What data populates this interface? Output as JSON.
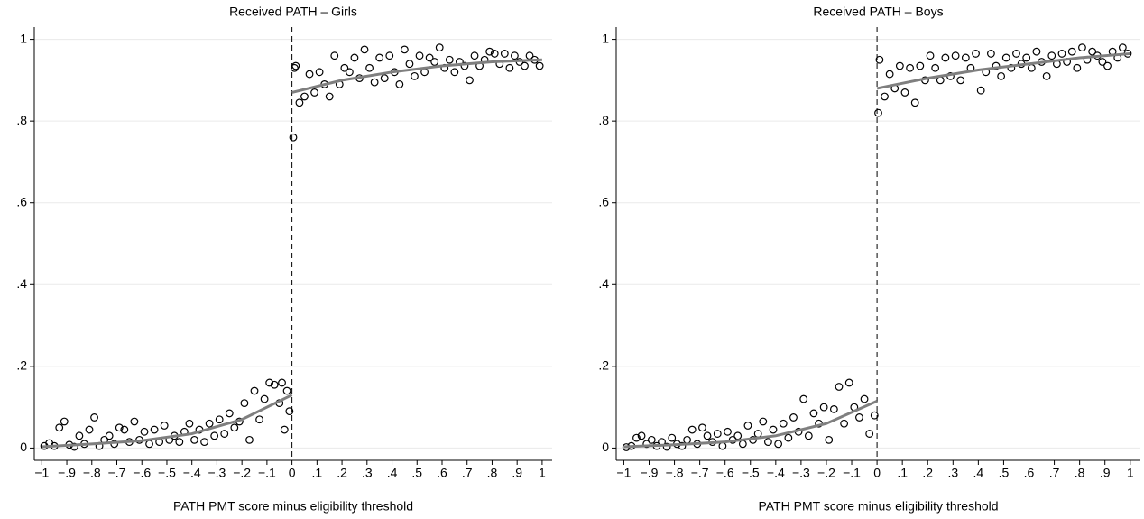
{
  "chart_data": [
    {
      "type": "scatter",
      "title": "Received PATH – Girls",
      "xlabel": "PATH PMT score minus eligibility threshold",
      "xlim": [
        -1.03,
        1.04
      ],
      "ylim": [
        -0.03,
        1.03
      ],
      "grid": true,
      "vline": 0,
      "xticks": [
        {
          "value": -1,
          "label": "−1"
        },
        {
          "value": -0.9,
          "label": "−.9"
        },
        {
          "value": -0.8,
          "label": "−.8"
        },
        {
          "value": -0.7,
          "label": "−.7"
        },
        {
          "value": -0.6,
          "label": "−.6"
        },
        {
          "value": -0.5,
          "label": "−.5"
        },
        {
          "value": -0.4,
          "label": "−.4"
        },
        {
          "value": -0.3,
          "label": "−.3"
        },
        {
          "value": -0.2,
          "label": "−.2"
        },
        {
          "value": -0.1,
          "label": "−.1"
        },
        0,
        {
          "value": 0.1,
          "label": ".1"
        },
        {
          "value": 0.2,
          "label": ".2"
        },
        {
          "value": 0.3,
          "label": ".3"
        },
        {
          "value": 0.4,
          "label": ".4"
        },
        {
          "value": 0.5,
          "label": ".5"
        },
        {
          "value": 0.6,
          "label": ".6"
        },
        {
          "value": 0.7,
          "label": ".7"
        },
        {
          "value": 0.8,
          "label": ".8"
        },
        {
          "value": 0.9,
          "label": ".9"
        },
        1
      ],
      "yticks": [
        0,
        {
          "value": 0.2,
          "label": ".2"
        },
        {
          "value": 0.4,
          "label": ".4"
        },
        {
          "value": 0.6,
          "label": ".6"
        },
        {
          "value": 0.8,
          "label": ".8"
        },
        1
      ],
      "series": [
        {
          "mode": "markers",
          "color": "#000000",
          "x": [
            -0.99,
            -0.97,
            -0.95,
            -0.93,
            -0.91,
            -0.89,
            -0.87,
            -0.85,
            -0.83,
            -0.81,
            -0.79,
            -0.77,
            -0.75,
            -0.73,
            -0.71,
            -0.69,
            -0.67,
            -0.65,
            -0.63,
            -0.61,
            -0.59,
            -0.57,
            -0.55,
            -0.53,
            -0.51,
            -0.49,
            -0.47,
            -0.45,
            -0.43,
            -0.41,
            -0.39,
            -0.37,
            -0.35,
            -0.33,
            -0.31,
            -0.29,
            -0.27,
            -0.25,
            -0.23,
            -0.21,
            -0.19,
            -0.17,
            -0.15,
            -0.13,
            -0.11,
            -0.09,
            -0.07,
            -0.05,
            -0.04,
            -0.03,
            -0.02,
            -0.01,
            0.005,
            0.01,
            0.015,
            0.03,
            0.05,
            0.07,
            0.09,
            0.11,
            0.13,
            0.15,
            0.17,
            0.19,
            0.21,
            0.23,
            0.25,
            0.27,
            0.29,
            0.31,
            0.33,
            0.35,
            0.37,
            0.39,
            0.41,
            0.43,
            0.45,
            0.47,
            0.49,
            0.51,
            0.53,
            0.55,
            0.57,
            0.59,
            0.61,
            0.63,
            0.65,
            0.67,
            0.69,
            0.71,
            0.73,
            0.75,
            0.77,
            0.79,
            0.81,
            0.83,
            0.85,
            0.87,
            0.89,
            0.91,
            0.93,
            0.95,
            0.97,
            0.99
          ],
          "values": [
            0.005,
            0.012,
            0.005,
            0.05,
            0.065,
            0.008,
            0.003,
            0.03,
            0.01,
            0.045,
            0.075,
            0.005,
            0.02,
            0.03,
            0.01,
            0.05,
            0.045,
            0.015,
            0.065,
            0.02,
            0.04,
            0.01,
            0.045,
            0.015,
            0.055,
            0.02,
            0.03,
            0.015,
            0.04,
            0.06,
            0.02,
            0.045,
            0.015,
            0.06,
            0.03,
            0.07,
            0.035,
            0.085,
            0.05,
            0.065,
            0.11,
            0.02,
            0.14,
            0.07,
            0.12,
            0.16,
            0.155,
            0.11,
            0.16,
            0.045,
            0.14,
            0.09,
            0.76,
            0.93,
            0.935,
            0.845,
            0.86,
            0.915,
            0.87,
            0.92,
            0.89,
            0.86,
            0.96,
            0.89,
            0.93,
            0.92,
            0.955,
            0.905,
            0.975,
            0.93,
            0.895,
            0.955,
            0.905,
            0.96,
            0.92,
            0.89,
            0.975,
            0.94,
            0.91,
            0.96,
            0.92,
            0.955,
            0.945,
            0.98,
            0.93,
            0.95,
            0.92,
            0.945,
            0.935,
            0.9,
            0.96,
            0.935,
            0.95,
            0.97,
            0.965,
            0.94,
            0.965,
            0.93,
            0.96,
            0.945,
            0.935,
            0.96,
            0.95,
            0.935
          ]
        },
        {
          "mode": "lines",
          "color": "#7f7f7f",
          "x": [
            -1,
            -0.8,
            -0.6,
            -0.4,
            -0.2,
            0
          ],
          "values": [
            0.003,
            0.01,
            0.018,
            0.035,
            0.07,
            0.13
          ]
        },
        {
          "mode": "lines",
          "color": "#7f7f7f",
          "x": [
            0,
            0.2,
            0.4,
            0.6,
            0.8,
            1
          ],
          "values": [
            0.87,
            0.9,
            0.92,
            0.935,
            0.945,
            0.95
          ]
        }
      ]
    },
    {
      "type": "scatter",
      "title": "Received PATH – Boys",
      "xlabel": "PATH PMT score minus eligibility threshold",
      "xlim": [
        -1.03,
        1.04
      ],
      "ylim": [
        -0.03,
        1.03
      ],
      "grid": true,
      "vline": 0,
      "xticks": [
        {
          "value": -1,
          "label": "−1"
        },
        {
          "value": -0.9,
          "label": "−.9"
        },
        {
          "value": -0.8,
          "label": "−.8"
        },
        {
          "value": -0.7,
          "label": "−.7"
        },
        {
          "value": -0.6,
          "label": "−.6"
        },
        {
          "value": -0.5,
          "label": "−.5"
        },
        {
          "value": -0.4,
          "label": "−.4"
        },
        {
          "value": -0.3,
          "label": "−.3"
        },
        {
          "value": -0.2,
          "label": "−.2"
        },
        {
          "value": -0.1,
          "label": "−.1"
        },
        0,
        {
          "value": 0.1,
          "label": ".1"
        },
        {
          "value": 0.2,
          "label": ".2"
        },
        {
          "value": 0.3,
          "label": ".3"
        },
        {
          "value": 0.4,
          "label": ".4"
        },
        {
          "value": 0.5,
          "label": ".5"
        },
        {
          "value": 0.6,
          "label": ".6"
        },
        {
          "value": 0.7,
          "label": ".7"
        },
        {
          "value": 0.8,
          "label": ".8"
        },
        {
          "value": 0.9,
          "label": ".9"
        },
        1
      ],
      "yticks": [
        0,
        {
          "value": 0.2,
          "label": ".2"
        },
        {
          "value": 0.4,
          "label": ".4"
        },
        {
          "value": 0.6,
          "label": ".6"
        },
        {
          "value": 0.8,
          "label": ".8"
        },
        1
      ],
      "series": [
        {
          "mode": "markers",
          "color": "#000000",
          "x": [
            -0.99,
            -0.97,
            -0.95,
            -0.93,
            -0.91,
            -0.89,
            -0.87,
            -0.85,
            -0.83,
            -0.81,
            -0.79,
            -0.77,
            -0.75,
            -0.73,
            -0.71,
            -0.69,
            -0.67,
            -0.65,
            -0.63,
            -0.61,
            -0.59,
            -0.57,
            -0.55,
            -0.53,
            -0.51,
            -0.49,
            -0.47,
            -0.45,
            -0.43,
            -0.41,
            -0.39,
            -0.37,
            -0.35,
            -0.33,
            -0.31,
            -0.29,
            -0.27,
            -0.25,
            -0.23,
            -0.21,
            -0.19,
            -0.17,
            -0.15,
            -0.13,
            -0.11,
            -0.09,
            -0.07,
            -0.05,
            -0.03,
            -0.01,
            0.005,
            0.01,
            0.03,
            0.05,
            0.07,
            0.09,
            0.11,
            0.13,
            0.15,
            0.17,
            0.19,
            0.21,
            0.23,
            0.25,
            0.27,
            0.29,
            0.31,
            0.33,
            0.35,
            0.37,
            0.39,
            0.41,
            0.43,
            0.45,
            0.47,
            0.49,
            0.51,
            0.53,
            0.55,
            0.57,
            0.59,
            0.61,
            0.63,
            0.65,
            0.67,
            0.69,
            0.71,
            0.73,
            0.75,
            0.77,
            0.79,
            0.81,
            0.83,
            0.85,
            0.87,
            0.89,
            0.91,
            0.93,
            0.95,
            0.97,
            0.99
          ],
          "values": [
            0.002,
            0.005,
            0.025,
            0.03,
            0.01,
            0.02,
            0.005,
            0.015,
            0.003,
            0.025,
            0.01,
            0.005,
            0.02,
            0.045,
            0.01,
            0.05,
            0.03,
            0.015,
            0.035,
            0.005,
            0.04,
            0.02,
            0.03,
            0.01,
            0.055,
            0.02,
            0.035,
            0.065,
            0.015,
            0.045,
            0.01,
            0.06,
            0.025,
            0.075,
            0.04,
            0.12,
            0.03,
            0.085,
            0.06,
            0.1,
            0.02,
            0.095,
            0.15,
            0.06,
            0.16,
            0.1,
            0.075,
            0.12,
            0.035,
            0.08,
            0.82,
            0.95,
            0.86,
            0.915,
            0.88,
            0.935,
            0.87,
            0.93,
            0.845,
            0.935,
            0.9,
            0.96,
            0.93,
            0.9,
            0.955,
            0.91,
            0.96,
            0.9,
            0.955,
            0.93,
            0.965,
            0.875,
            0.92,
            0.965,
            0.935,
            0.91,
            0.955,
            0.93,
            0.965,
            0.94,
            0.955,
            0.93,
            0.97,
            0.945,
            0.91,
            0.96,
            0.94,
            0.965,
            0.945,
            0.97,
            0.93,
            0.98,
            0.95,
            0.97,
            0.96,
            0.945,
            0.935,
            0.97,
            0.955,
            0.98,
            0.965
          ]
        },
        {
          "mode": "lines",
          "color": "#7f7f7f",
          "x": [
            -1,
            -0.8,
            -0.6,
            -0.4,
            -0.2,
            0
          ],
          "values": [
            0.003,
            0.008,
            0.015,
            0.03,
            0.06,
            0.115
          ]
        },
        {
          "mode": "lines",
          "color": "#7f7f7f",
          "x": [
            0,
            0.2,
            0.4,
            0.6,
            0.8,
            1
          ],
          "values": [
            0.88,
            0.905,
            0.925,
            0.94,
            0.955,
            0.965
          ]
        }
      ]
    }
  ]
}
